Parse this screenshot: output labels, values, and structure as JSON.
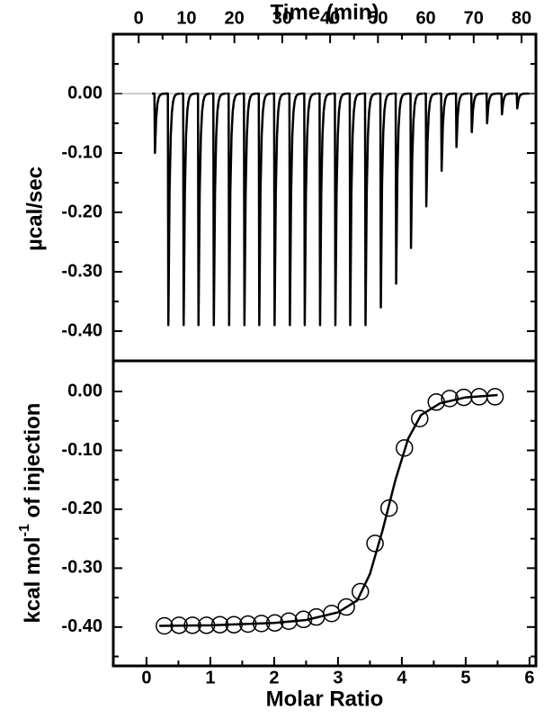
{
  "chart_data": [
    {
      "type": "thermogram",
      "x_label": "Time (min)",
      "y_label": "µcal/sec",
      "xlim": [
        -5.3,
        83
      ],
      "xticks": [
        0,
        10,
        20,
        30,
        40,
        50,
        60,
        70,
        80
      ],
      "xminor": [
        5,
        15,
        25,
        35,
        45,
        55,
        65,
        75
      ],
      "ylim": [
        -0.45,
        0.1
      ],
      "yticks": [
        {
          "value": 0,
          "label": "0.00"
        },
        {
          "value": -0.1,
          "label": "-0.10"
        },
        {
          "value": -0.2,
          "label": "-0.20"
        },
        {
          "value": -0.3,
          "label": "-0.30"
        },
        {
          "value": -0.4,
          "label": "-0.40"
        }
      ],
      "yminor": [
        0.05,
        -0.05,
        -0.15,
        -0.25,
        -0.35
      ],
      "baseline": 0,
      "color": "#000000",
      "times": [
        3.4,
        6.2,
        9.4,
        12.5,
        15.7,
        18.9,
        22.1,
        25.2,
        28.4,
        31.6,
        34.7,
        37.9,
        41.1,
        44.2,
        47.4,
        50.6,
        53.8,
        56.9,
        60.1,
        63.3,
        66.4,
        69.6,
        72.8,
        75.9,
        79.1
      ],
      "peaks": [
        -0.1,
        -0.39,
        -0.39,
        -0.39,
        -0.39,
        -0.39,
        -0.39,
        -0.39,
        -0.39,
        -0.39,
        -0.39,
        -0.39,
        -0.39,
        -0.39,
        -0.39,
        -0.36,
        -0.32,
        -0.26,
        -0.19,
        -0.13,
        -0.09,
        -0.065,
        -0.05,
        -0.035,
        -0.025
      ]
    },
    {
      "type": "scatter",
      "x_label": "Molar Ratio",
      "y_label": [
        "kcal mol",
        "-1",
        " of injection"
      ],
      "xlim": [
        -0.52,
        6.1
      ],
      "xticks": [
        0,
        1,
        2,
        3,
        4,
        5,
        6
      ],
      "xminor": [
        0.5,
        1.5,
        2.5,
        3.5,
        4.5,
        5.5
      ],
      "ylim": [
        -0.466,
        0.052
      ],
      "yticks": [
        {
          "value": 0,
          "label": "0.00"
        },
        {
          "value": -0.1,
          "label": "-0.10"
        },
        {
          "value": -0.2,
          "label": "-0.20"
        },
        {
          "value": -0.3,
          "label": "-0.30"
        },
        {
          "value": -0.4,
          "label": "-0.40"
        }
      ],
      "yminor": [
        -0.05,
        -0.15,
        -0.25,
        -0.35,
        -0.45
      ],
      "color": "#000000",
      "x": [
        0.28,
        0.51,
        0.72,
        0.94,
        1.15,
        1.37,
        1.59,
        1.8,
        2.01,
        2.23,
        2.46,
        2.66,
        2.9,
        3.13,
        3.35,
        3.58,
        3.8,
        4.04,
        4.28,
        4.54,
        4.75,
        4.97,
        5.21,
        5.46
      ],
      "y": [
        -0.398,
        -0.397,
        -0.397,
        -0.397,
        -0.396,
        -0.396,
        -0.395,
        -0.394,
        -0.393,
        -0.39,
        -0.387,
        -0.383,
        -0.377,
        -0.366,
        -0.34,
        -0.258,
        -0.198,
        -0.096,
        -0.046,
        -0.018,
        -0.012,
        -0.01,
        -0.009,
        -0.009
      ],
      "fit": {
        "x": [
          0.2,
          1,
          2,
          2.5,
          3,
          3.3,
          3.5,
          3.7,
          3.9,
          4.1,
          4.3,
          4.6,
          5,
          5.5
        ],
        "y": [
          -0.398,
          -0.397,
          -0.393,
          -0.388,
          -0.375,
          -0.355,
          -0.31,
          -0.235,
          -0.15,
          -0.08,
          -0.04,
          -0.02,
          -0.01,
          -0.006
        ]
      }
    }
  ]
}
